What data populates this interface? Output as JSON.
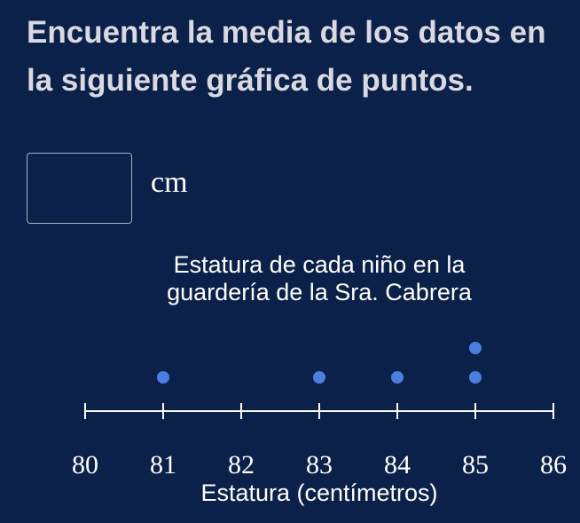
{
  "question": "Encuentra la media de los datos en la siguiente gráfica de puntos.",
  "answer": {
    "value": "",
    "unit": "cm"
  },
  "colors": {
    "background": "#0b214a",
    "dot": "#4a7fe0",
    "axis": "#ffffff"
  },
  "chart_data": {
    "type": "scatter",
    "title": "Estatura de cada niño en la guardería de la Sra. Cabrera",
    "xlabel": "Estatura (centímetros)",
    "xlim": [
      80,
      86
    ],
    "ticks": [
      "80",
      "81",
      "82",
      "83",
      "84",
      "85",
      "86"
    ],
    "points": [
      {
        "x": 81,
        "count": 1
      },
      {
        "x": 83,
        "count": 1
      },
      {
        "x": 84,
        "count": 1
      },
      {
        "x": 85,
        "count": 2
      }
    ],
    "grid": false
  }
}
